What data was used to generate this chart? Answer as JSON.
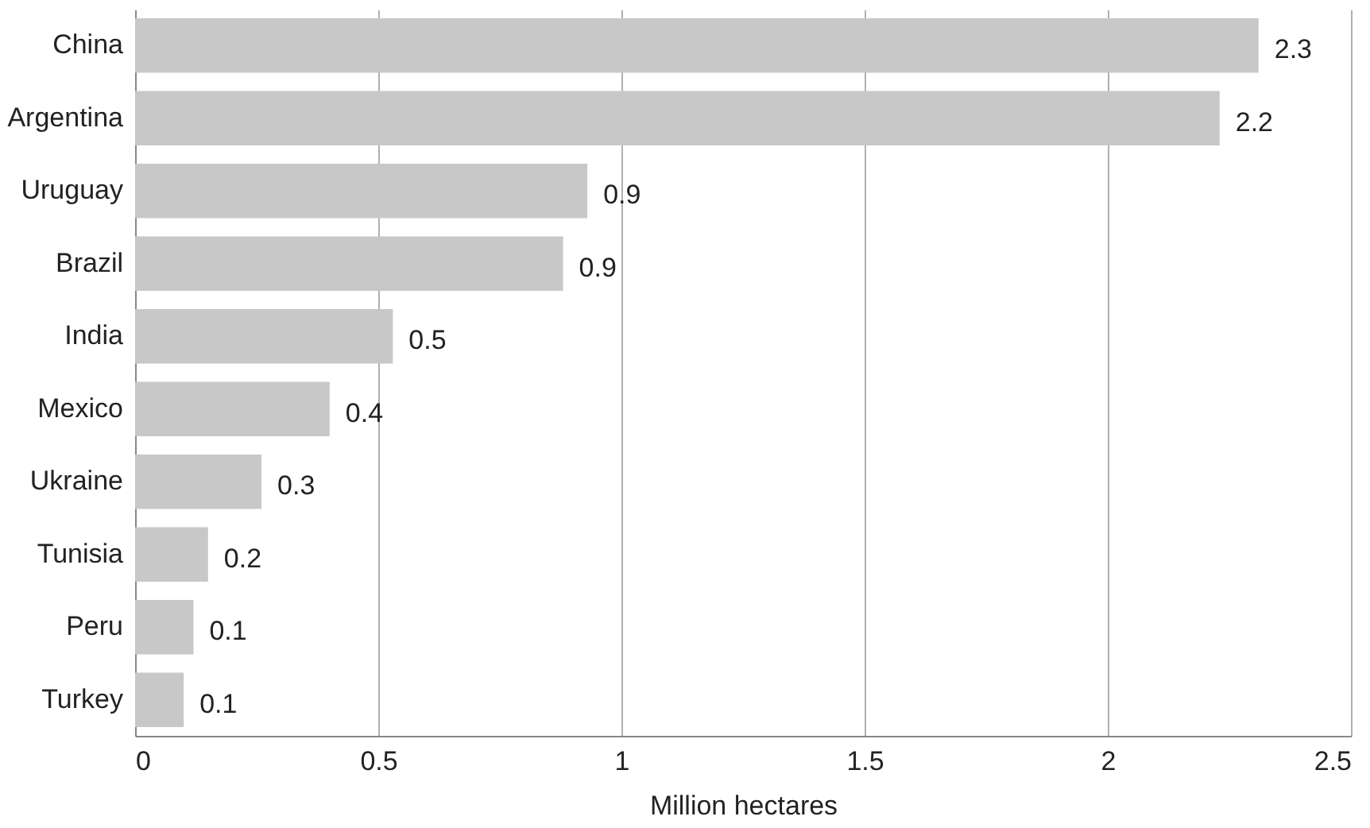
{
  "chart_data": {
    "type": "bar",
    "orientation": "horizontal",
    "xlabel": "Million hectares",
    "categories": [
      "China",
      "Argentina",
      "Uruguay",
      "Brazil",
      "India",
      "Mexico",
      "Ukraine",
      "Tunisia",
      "Peru",
      "Turkey"
    ],
    "values": [
      2.31,
      2.23,
      0.93,
      0.88,
      0.53,
      0.4,
      0.26,
      0.15,
      0.12,
      0.1
    ],
    "value_labels": [
      "2.3",
      "2.2",
      "0.9",
      "0.9",
      "0.5",
      "0.4",
      "0.3",
      "0.2",
      "0.1",
      "0.1"
    ],
    "color": "#c8c8c8",
    "xlim": [
      0,
      2.5
    ],
    "xticks": [
      0,
      0.5,
      1,
      1.5,
      2,
      2.5
    ],
    "grid": "x"
  }
}
